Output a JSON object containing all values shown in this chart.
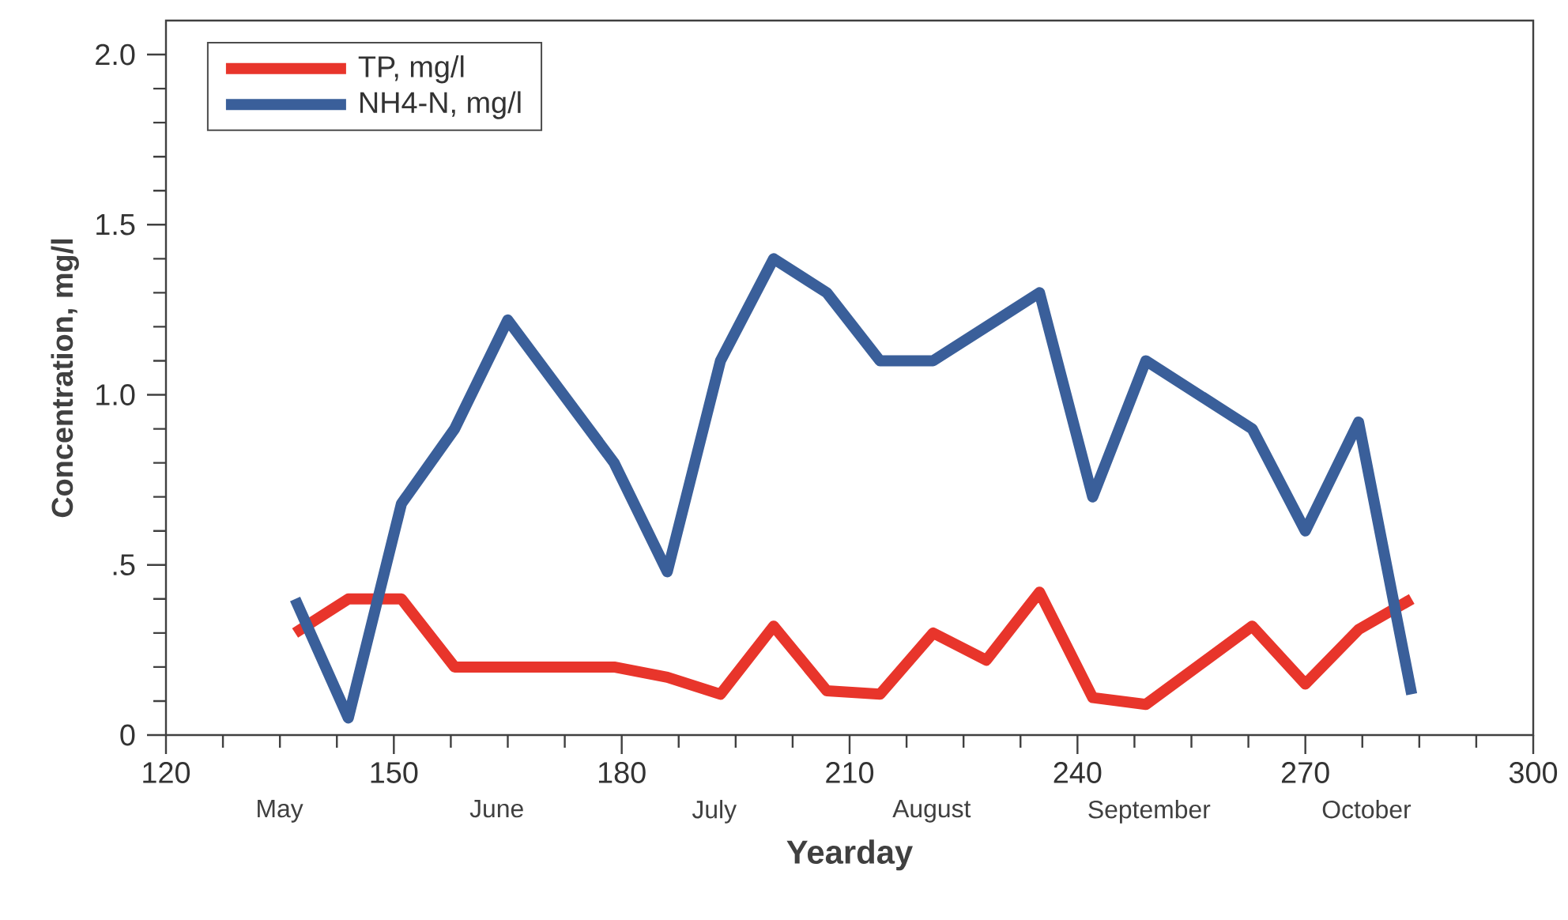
{
  "chart_data": {
    "type": "line",
    "xlabel": "Yearday",
    "ylabel": "Concentration, mg/l",
    "series": [
      {
        "name": "TP, mg/l",
        "color": "#e8352b",
        "x": [
          137,
          144,
          151,
          158,
          179,
          186,
          193,
          200,
          207,
          214,
          221,
          228,
          235,
          242,
          249,
          263,
          270,
          277,
          284
        ],
        "values": [
          0.3,
          0.4,
          0.4,
          0.2,
          0.2,
          0.17,
          0.12,
          0.32,
          0.13,
          0.12,
          0.3,
          0.22,
          0.42,
          0.11,
          0.09,
          0.32,
          0.15,
          0.31,
          0.4
        ]
      },
      {
        "name": "NH4-N, mg/l",
        "color": "#3a5f9a",
        "x": [
          137,
          144,
          151,
          158,
          165,
          179,
          186,
          193,
          200,
          207,
          214,
          221,
          235,
          242,
          249,
          263,
          270,
          277,
          284
        ],
        "values": [
          0.4,
          0.05,
          0.68,
          0.9,
          1.22,
          0.8,
          0.48,
          1.1,
          1.4,
          1.3,
          1.1,
          1.1,
          1.3,
          0.7,
          1.1,
          0.9,
          0.6,
          0.92,
          0.12
        ]
      }
    ],
    "xlim": [
      120,
      300
    ],
    "xticks": [
      120,
      150,
      180,
      210,
      240,
      270,
      300
    ],
    "ylim": [
      0,
      2.1
    ],
    "yticks": [
      0,
      {
        "value": 0.5,
        "label": ".5"
      },
      {
        "value": 1.0,
        "label": "1.0"
      },
      {
        "value": 1.5,
        "label": "1.5"
      },
      {
        "value": 2.0,
        "label": "2.0"
      }
    ],
    "annotations": [
      "May",
      "June",
      "July",
      "August",
      "September",
      "October"
    ],
    "legend": "top left",
    "grid": false,
    "marker": "none",
    "line_style": "solid"
  }
}
